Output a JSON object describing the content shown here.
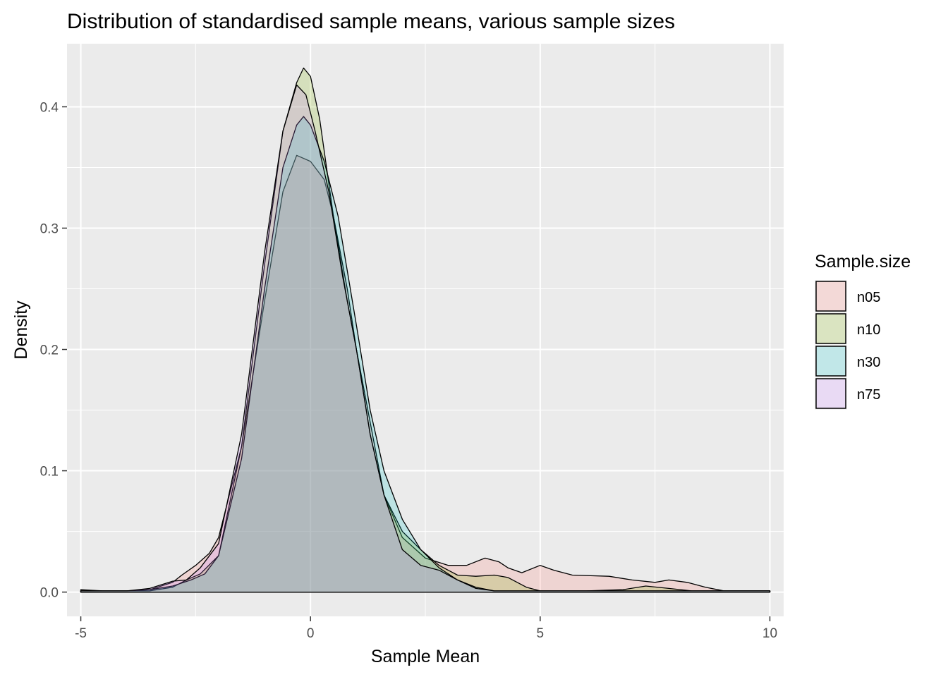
{
  "chart_data": {
    "type": "area",
    "title": "Distribution of standardised sample means, various sample sizes",
    "xlabel": "Sample Mean",
    "ylabel": "Density",
    "xlim": [
      -5.3,
      10.3
    ],
    "ylim": [
      -0.02,
      0.452
    ],
    "x_ticks": [
      -5,
      0,
      5,
      10
    ],
    "x_tick_labels": [
      "-5",
      "0",
      "5",
      "10"
    ],
    "y_ticks": [
      0.0,
      0.1,
      0.2,
      0.3,
      0.4
    ],
    "y_tick_labels": [
      "0.0",
      "0.1",
      "0.2",
      "0.3",
      "0.4"
    ],
    "grid": true,
    "legend": {
      "title": "Sample.size",
      "position": "right"
    },
    "series": [
      {
        "name": "n05",
        "color": "#F8766D",
        "points": [
          [
            -5,
            0.002
          ],
          [
            -4.5,
            0.001
          ],
          [
            -4,
            0.001
          ],
          [
            -3.5,
            0.002
          ],
          [
            -3,
            0.008
          ],
          [
            -2.8,
            0.014
          ],
          [
            -2.5,
            0.022
          ],
          [
            -2.2,
            0.032
          ],
          [
            -2,
            0.045
          ],
          [
            -1.5,
            0.12
          ],
          [
            -1,
            0.24
          ],
          [
            -0.6,
            0.33
          ],
          [
            -0.3,
            0.36
          ],
          [
            0,
            0.355
          ],
          [
            0.3,
            0.34
          ],
          [
            0.5,
            0.31
          ],
          [
            0.8,
            0.25
          ],
          [
            1,
            0.2
          ],
          [
            1.3,
            0.14
          ],
          [
            1.6,
            0.08
          ],
          [
            2,
            0.045
          ],
          [
            2.5,
            0.028
          ],
          [
            3,
            0.022
          ],
          [
            3.4,
            0.022
          ],
          [
            3.8,
            0.028
          ],
          [
            4.1,
            0.025
          ],
          [
            4.3,
            0.02
          ],
          [
            4.6,
            0.016
          ],
          [
            5,
            0.022
          ],
          [
            5.3,
            0.018
          ],
          [
            5.7,
            0.014
          ],
          [
            6.5,
            0.013
          ],
          [
            7,
            0.01
          ],
          [
            7.5,
            0.008
          ],
          [
            7.8,
            0.01
          ],
          [
            8.2,
            0.008
          ],
          [
            8.6,
            0.004
          ],
          [
            9,
            0.001
          ],
          [
            10,
            0.001
          ]
        ]
      },
      {
        "name": "n10",
        "color": "#7CAE00",
        "points": [
          [
            -5,
            0.001
          ],
          [
            -4,
            0.001
          ],
          [
            -3.5,
            0.001
          ],
          [
            -3,
            0.004
          ],
          [
            -2.7,
            0.01
          ],
          [
            -2.4,
            0.015
          ],
          [
            -2,
            0.03
          ],
          [
            -1.5,
            0.12
          ],
          [
            -1,
            0.27
          ],
          [
            -0.6,
            0.38
          ],
          [
            -0.3,
            0.42
          ],
          [
            -0.15,
            0.432
          ],
          [
            0,
            0.425
          ],
          [
            0.2,
            0.39
          ],
          [
            0.5,
            0.31
          ],
          [
            0.8,
            0.24
          ],
          [
            1,
            0.2
          ],
          [
            1.3,
            0.13
          ],
          [
            1.6,
            0.08
          ],
          [
            2,
            0.05
          ],
          [
            2.4,
            0.035
          ],
          [
            2.8,
            0.022
          ],
          [
            3.2,
            0.014
          ],
          [
            3.6,
            0.013
          ],
          [
            4,
            0.014
          ],
          [
            4.3,
            0.012
          ],
          [
            4.7,
            0.004
          ],
          [
            5,
            0.001
          ],
          [
            6,
            0.001
          ],
          [
            6.8,
            0.002
          ],
          [
            7.3,
            0.005
          ],
          [
            7.8,
            0.003
          ],
          [
            8.3,
            0.001
          ],
          [
            10,
            0.001
          ]
        ]
      },
      {
        "name": "n30",
        "color": "#00BFC4",
        "points": [
          [
            -5,
            0.001
          ],
          [
            -4,
            0.001
          ],
          [
            -3.5,
            0.002
          ],
          [
            -3,
            0.005
          ],
          [
            -2.6,
            0.01
          ],
          [
            -2.3,
            0.015
          ],
          [
            -2,
            0.03
          ],
          [
            -1.5,
            0.11
          ],
          [
            -1,
            0.25
          ],
          [
            -0.6,
            0.35
          ],
          [
            -0.3,
            0.385
          ],
          [
            -0.15,
            0.392
          ],
          [
            0,
            0.385
          ],
          [
            0.3,
            0.355
          ],
          [
            0.6,
            0.31
          ],
          [
            1,
            0.22
          ],
          [
            1.3,
            0.15
          ],
          [
            1.6,
            0.1
          ],
          [
            2,
            0.06
          ],
          [
            2.4,
            0.035
          ],
          [
            2.8,
            0.02
          ],
          [
            3.2,
            0.01
          ],
          [
            3.6,
            0.004
          ],
          [
            4,
            0.001
          ],
          [
            5,
            0.001
          ],
          [
            10,
            0.001
          ]
        ]
      },
      {
        "name": "n75",
        "color": "#C77CFF",
        "points": [
          [
            -5,
            0.001
          ],
          [
            -4,
            0.001
          ],
          [
            -3.5,
            0.003
          ],
          [
            -3,
            0.009
          ],
          [
            -2.7,
            0.01
          ],
          [
            -2.4,
            0.02
          ],
          [
            -2,
            0.04
          ],
          [
            -1.5,
            0.13
          ],
          [
            -1,
            0.28
          ],
          [
            -0.6,
            0.38
          ],
          [
            -0.3,
            0.418
          ],
          [
            -0.1,
            0.41
          ],
          [
            0.1,
            0.38
          ],
          [
            0.4,
            0.33
          ],
          [
            0.7,
            0.26
          ],
          [
            1,
            0.2
          ],
          [
            1.3,
            0.13
          ],
          [
            1.6,
            0.08
          ],
          [
            2,
            0.035
          ],
          [
            2.4,
            0.022
          ],
          [
            2.8,
            0.018
          ],
          [
            3.2,
            0.01
          ],
          [
            3.6,
            0.003
          ],
          [
            4,
            0.001
          ],
          [
            5,
            0.001
          ],
          [
            10,
            0.001
          ]
        ]
      }
    ]
  }
}
